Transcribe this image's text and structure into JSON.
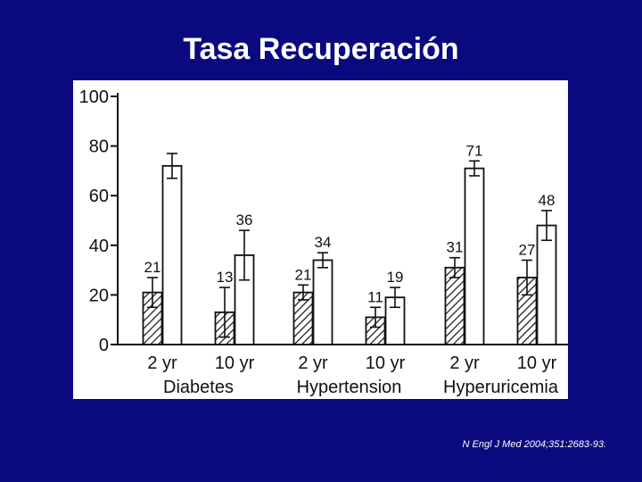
{
  "slide": {
    "title": "Tasa Recuperación",
    "citation": "N Engl J Med 2004;351:2683-93."
  },
  "colors": {
    "background": "#0a0a7e",
    "panel": "#ffffff",
    "ink": "#111111"
  },
  "chart_data": {
    "type": "bar",
    "title": "",
    "xlabel": "",
    "ylabel": "",
    "ylim": [
      0,
      100
    ],
    "yticks": [
      0,
      20,
      40,
      60,
      80,
      100
    ],
    "grid": false,
    "legend": "none",
    "categories": [
      "2 yr",
      "10 yr",
      "2 yr",
      "10 yr",
      "2 yr",
      "10 yr"
    ],
    "groups": [
      {
        "label": "Diabetes",
        "categories": [
          0,
          1
        ]
      },
      {
        "label": "Hypertension",
        "categories": [
          2,
          3
        ]
      },
      {
        "label": "Hyperuricemia",
        "categories": [
          4,
          5
        ]
      }
    ],
    "series": [
      {
        "fill": "hatched",
        "values": [
          21,
          13,
          21,
          11,
          31,
          27
        ],
        "error": [
          6,
          10,
          3,
          4,
          4,
          7
        ]
      },
      {
        "fill": "white",
        "values": [
          72,
          36,
          34,
          19,
          71,
          48
        ],
        "error": [
          5,
          10,
          3,
          4,
          3,
          6
        ]
      }
    ],
    "value_labels": [
      [
        "21",
        "13",
        "21",
        "11",
        "31",
        "27"
      ],
      [
        "",
        "36",
        "34",
        "19",
        "71",
        "48"
      ]
    ]
  }
}
